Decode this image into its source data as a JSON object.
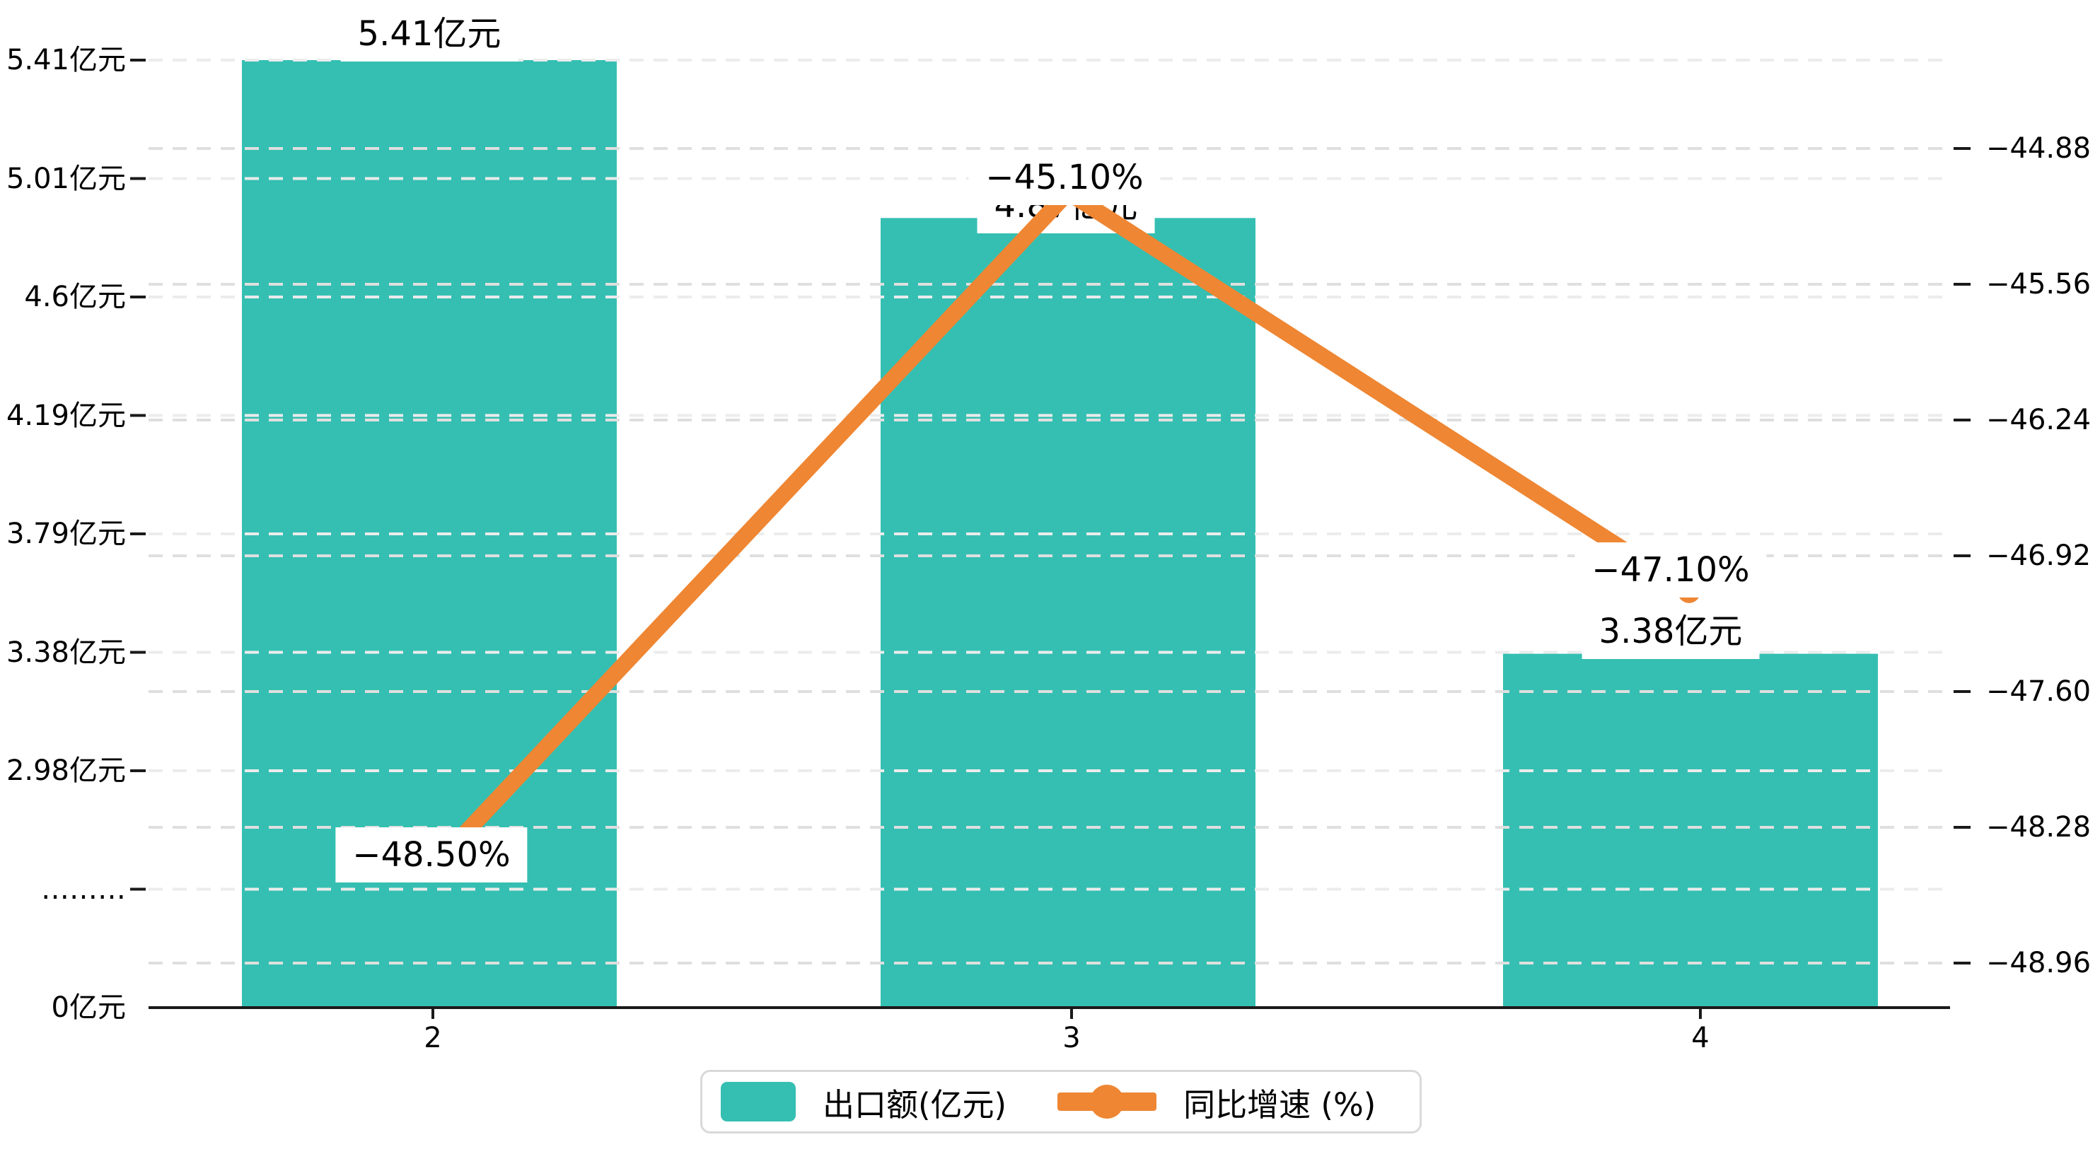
{
  "chart_data": {
    "type": "bar",
    "title": "",
    "categories": [
      "2",
      "3",
      "4"
    ],
    "series": [
      {
        "name": "出口额(亿元)",
        "type": "bar",
        "axis": "left",
        "color": "#35bfb2",
        "values": [
          5.41,
          4.87,
          3.38
        ],
        "data_labels": [
          "5.41亿元",
          "4.87亿元",
          "3.38亿元"
        ]
      },
      {
        "name": "同比增速 (%)",
        "type": "line",
        "axis": "right",
        "color": "#ee8633",
        "values": [
          -48.5,
          -45.1,
          -47.1
        ],
        "data_labels": [
          "−48.50%",
          "−45.10%",
          "−47.10%"
        ]
      }
    ],
    "left_axis": {
      "unit": "亿元",
      "tick_labels": [
        "5.41亿元",
        "5.01亿元",
        "4.6亿元",
        "4.19亿元",
        "3.79亿元",
        "3.38亿元",
        "2.98亿元",
        "………",
        "0亿元"
      ],
      "broken_axis": true
    },
    "right_axis": {
      "tick_labels": [
        "−44.88",
        "−45.56",
        "−46.24",
        "−46.92",
        "−47.60",
        "−48.28",
        "−48.96"
      ],
      "range": [
        -48.96,
        -44.88
      ]
    },
    "xlabel": "",
    "ylabel": "",
    "grid": true,
    "legend_position": "bottom"
  },
  "legend": {
    "items": [
      {
        "label": "出口额(亿元)",
        "color": "#35bfb2",
        "swatch": "bar-swatch"
      },
      {
        "label": "同比增速 (%)",
        "color": "#ee8633",
        "swatch": "line-dot-swatch"
      }
    ]
  },
  "colors": {
    "bar": "#35bfb2",
    "line": "#ee8633",
    "axis": "#1a1a1a",
    "grid_left": "#ececec",
    "grid_right": "#dfdfdf",
    "label_bg": "#ffffff"
  }
}
